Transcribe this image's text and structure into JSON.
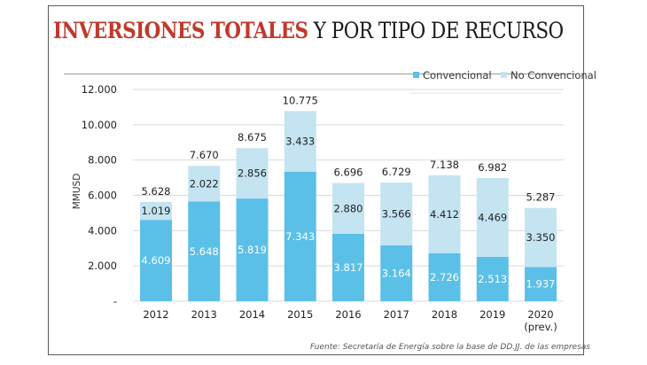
{
  "header": {
    "title_highlight": "INVERSIONES TOTALES",
    "title_rest": "Y POR TIPO DE RECURSO"
  },
  "colors": {
    "title_accent": "#c0392b",
    "convencional": "#5bc0e8",
    "no_convencional": "#c4e4f2",
    "grid": "#d9d9d9"
  },
  "chart_data": {
    "type": "bar",
    "stacked": true,
    "title": "INVERSIONES TOTALES Y POR TIPO DE RECURSO",
    "xlabel": "",
    "ylabel": "MMUSD",
    "ylim": [
      0,
      12000
    ],
    "yticks": [
      0,
      2000,
      4000,
      6000,
      8000,
      10000,
      12000
    ],
    "ytick_labels": [
      "-",
      "2.000",
      "4.000",
      "6.000",
      "8.000",
      "10.000",
      "12.000"
    ],
    "grid": true,
    "legend_position": "top-right",
    "categories": [
      "2012",
      "2013",
      "2014",
      "2015",
      "2016",
      "2017",
      "2018",
      "2019",
      "2020"
    ],
    "category_sublabels": [
      "",
      "",
      "",
      "",
      "",
      "",
      "",
      "",
      "(prev.)"
    ],
    "series": [
      {
        "name": "Convencional",
        "values": [
          4609,
          5648,
          5819,
          7343,
          3817,
          3164,
          2726,
          2513,
          1937
        ],
        "labels": [
          "4.609",
          "5.648",
          "5.819",
          "7.343",
          "3.817",
          "3.164",
          "2.726",
          "2.513",
          "1.937"
        ]
      },
      {
        "name": "No Convencional",
        "values": [
          1019,
          2022,
          2856,
          3433,
          2880,
          3566,
          4412,
          4469,
          3350
        ],
        "labels": [
          "1.019",
          "2.022",
          "2.856",
          "3.433",
          "2.880",
          "3.566",
          "4.412",
          "4.469",
          "3.350"
        ]
      }
    ],
    "totals": [
      5628,
      7670,
      8675,
      10775,
      6696,
      6729,
      7138,
      6982,
      5287
    ],
    "total_labels": [
      "5.628",
      "7.670",
      "8.675",
      "10.775",
      "6.696",
      "6.729",
      "7.138",
      "6.982",
      "5.287"
    ],
    "source": "Fuente: Secretaría de Energía sobre la base de DD.JJ. de las empresas"
  }
}
